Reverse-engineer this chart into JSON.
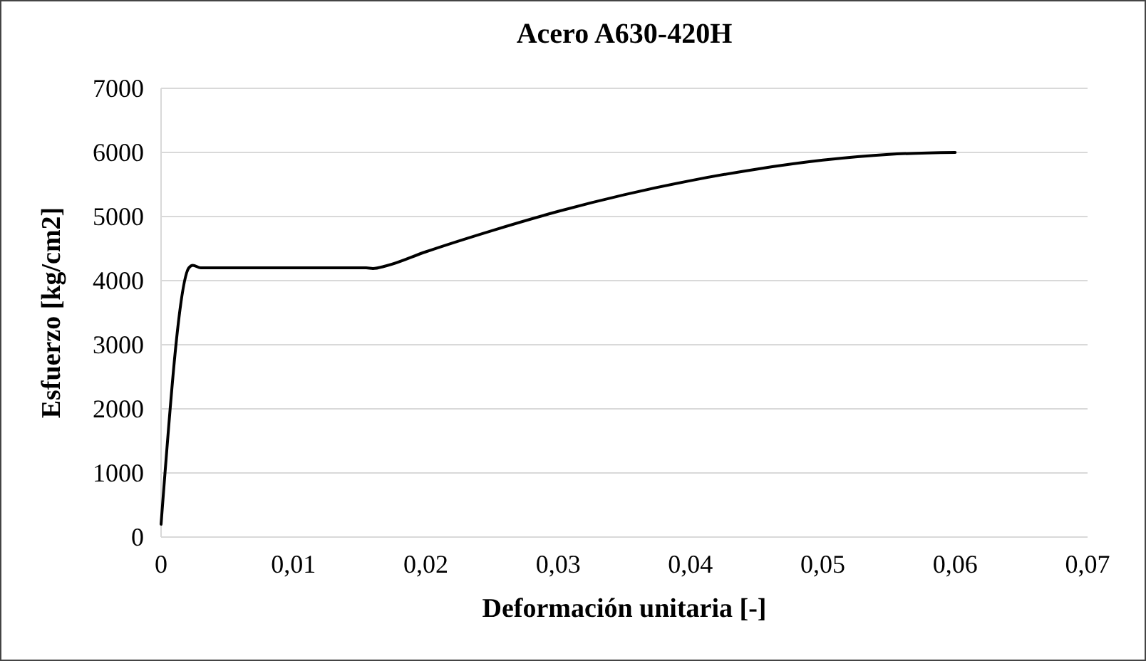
{
  "chart_data": {
    "type": "line",
    "title": "Acero A630-420H",
    "xlabel": "Deformación unitaria [-]",
    "ylabel": "Esfuerzo [kg/cm2]",
    "series": [
      {
        "color": "#000000",
        "x": [
          0,
          0.0021,
          0.0024,
          0.003,
          0.008,
          0.0155,
          0.016,
          0.017,
          0.02,
          0.025,
          0.03,
          0.035,
          0.04,
          0.045,
          0.05,
          0.055,
          0.06
        ],
        "values": [
          200,
          4200,
          4240,
          4200,
          4200,
          4200,
          4190,
          4230,
          4450,
          4780,
          5080,
          5340,
          5560,
          5740,
          5880,
          5970,
          6000
        ]
      }
    ],
    "xlim": [
      0,
      0.07
    ],
    "xticks": [
      0,
      {
        "value": 0.01,
        "label": "0,01"
      },
      {
        "value": 0.02,
        "label": "0,02"
      },
      {
        "value": 0.03,
        "label": "0,03"
      },
      {
        "value": 0.04,
        "label": "0,04"
      },
      {
        "value": 0.05,
        "label": "0,05"
      },
      {
        "value": 0.06,
        "label": "0,06"
      },
      {
        "value": 0.07,
        "label": "0,07"
      }
    ],
    "ylim": [
      0,
      7000
    ],
    "yticks": [
      0,
      1000,
      2000,
      3000,
      4000,
      5000,
      6000,
      7000
    ],
    "grid": "y",
    "marker": "none",
    "line_style": "solid"
  }
}
